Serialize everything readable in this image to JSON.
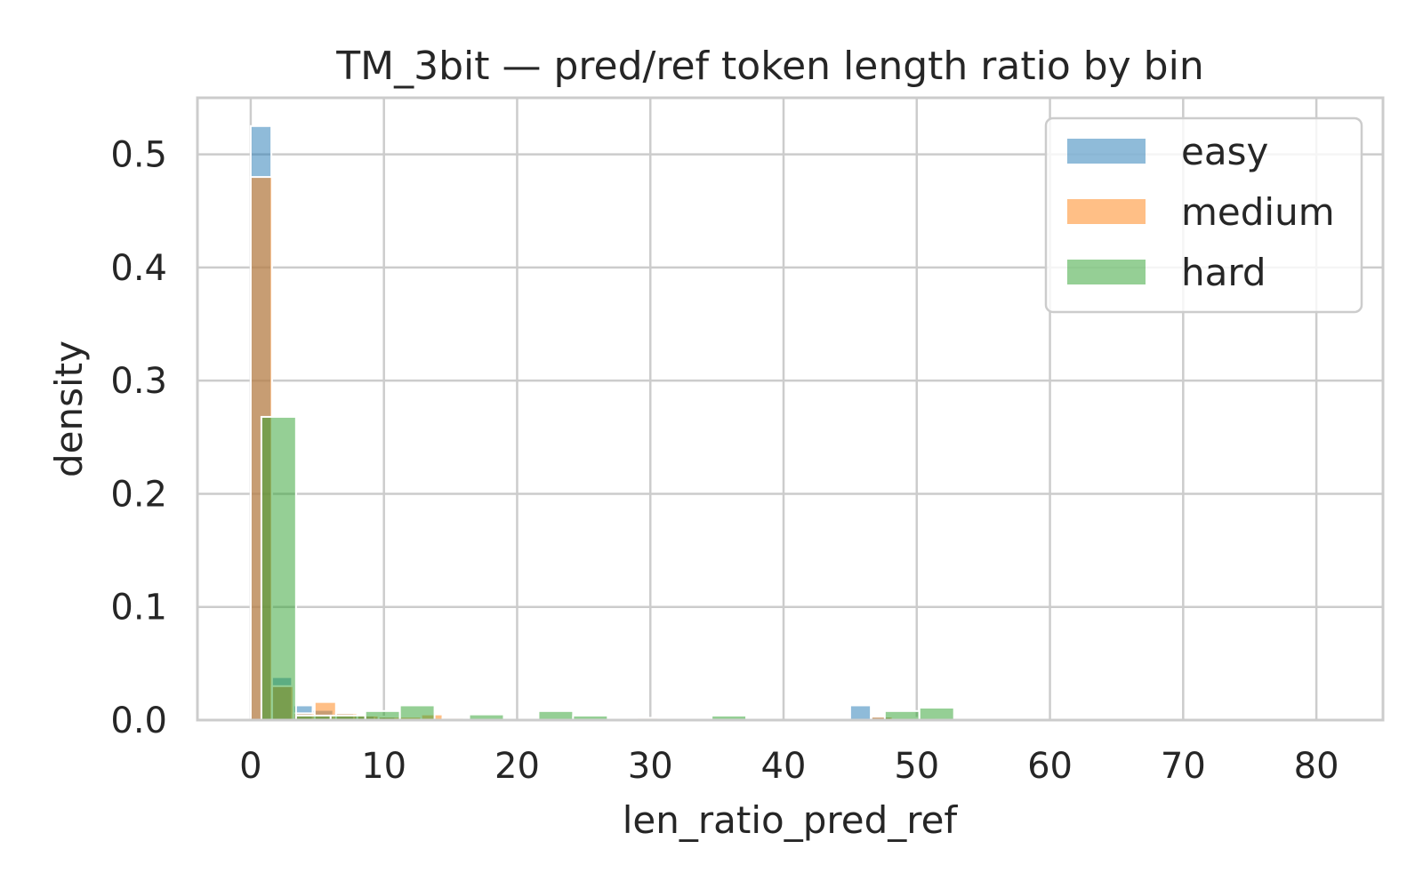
{
  "chart_data": {
    "type": "bar",
    "title": "TM_3bit — pred/ref token length ratio by bin",
    "xlabel": "len_ratio_pred_ref",
    "ylabel": "density",
    "xlim": [
      -4,
      85
    ],
    "ylim": [
      0,
      0.55
    ],
    "xticks": [
      0,
      10,
      20,
      30,
      40,
      50,
      60,
      70,
      80
    ],
    "yticks": [
      0.0,
      0.1,
      0.2,
      0.3,
      0.4,
      0.5
    ],
    "xtick_labels": [
      "0",
      "10",
      "20",
      "30",
      "40",
      "50",
      "60",
      "70",
      "80"
    ],
    "ytick_labels": [
      "0.0",
      "0.1",
      "0.2",
      "0.3",
      "0.4",
      "0.5"
    ],
    "grid": true,
    "legend_position": "top-right",
    "series": [
      {
        "name": "easy",
        "color": "#1f77b4",
        "opacity": 0.5,
        "bin_width": 1.55,
        "bins": [
          {
            "x": 0.0,
            "y": 0.525
          },
          {
            "x": 1.55,
            "y": 0.038
          },
          {
            "x": 3.1,
            "y": 0.013
          },
          {
            "x": 4.65,
            "y": 0.009
          },
          {
            "x": 6.2,
            "y": 0.006
          },
          {
            "x": 7.75,
            "y": 0.004
          },
          {
            "x": 9.3,
            "y": 0.003
          },
          {
            "x": 10.85,
            "y": 0.002
          },
          {
            "x": 12.4,
            "y": 0.002
          },
          {
            "x": 45.0,
            "y": 0.013
          },
          {
            "x": 46.55,
            "y": 0.003
          }
        ]
      },
      {
        "name": "medium",
        "color": "#ff7f0e",
        "opacity": 0.5,
        "bin_width": 1.6,
        "bins": [
          {
            "x": 0.0,
            "y": 0.48
          },
          {
            "x": 1.6,
            "y": 0.03
          },
          {
            "x": 3.2,
            "y": 0.006
          },
          {
            "x": 4.8,
            "y": 0.016
          },
          {
            "x": 6.4,
            "y": 0.006
          },
          {
            "x": 8.0,
            "y": 0.004
          },
          {
            "x": 9.6,
            "y": 0.003
          },
          {
            "x": 11.2,
            "y": 0.003
          },
          {
            "x": 12.8,
            "y": 0.005
          },
          {
            "x": 14.4,
            "y": 0.002
          },
          {
            "x": 29.0,
            "y": 0.002
          },
          {
            "x": 46.6,
            "y": 0.003
          },
          {
            "x": 48.2,
            "y": 0.002
          },
          {
            "x": 49.8,
            "y": 0.002
          }
        ]
      },
      {
        "name": "hard",
        "color": "#2ca02c",
        "opacity": 0.5,
        "bin_width": 2.6,
        "bins": [
          {
            "x": 0.8,
            "y": 0.268
          },
          {
            "x": 3.4,
            "y": 0.004
          },
          {
            "x": 6.0,
            "y": 0.004
          },
          {
            "x": 8.6,
            "y": 0.008
          },
          {
            "x": 11.2,
            "y": 0.013
          },
          {
            "x": 16.4,
            "y": 0.005
          },
          {
            "x": 21.6,
            "y": 0.008
          },
          {
            "x": 24.2,
            "y": 0.004
          },
          {
            "x": 34.6,
            "y": 0.004
          },
          {
            "x": 47.6,
            "y": 0.008
          },
          {
            "x": 50.2,
            "y": 0.011
          }
        ]
      }
    ]
  }
}
